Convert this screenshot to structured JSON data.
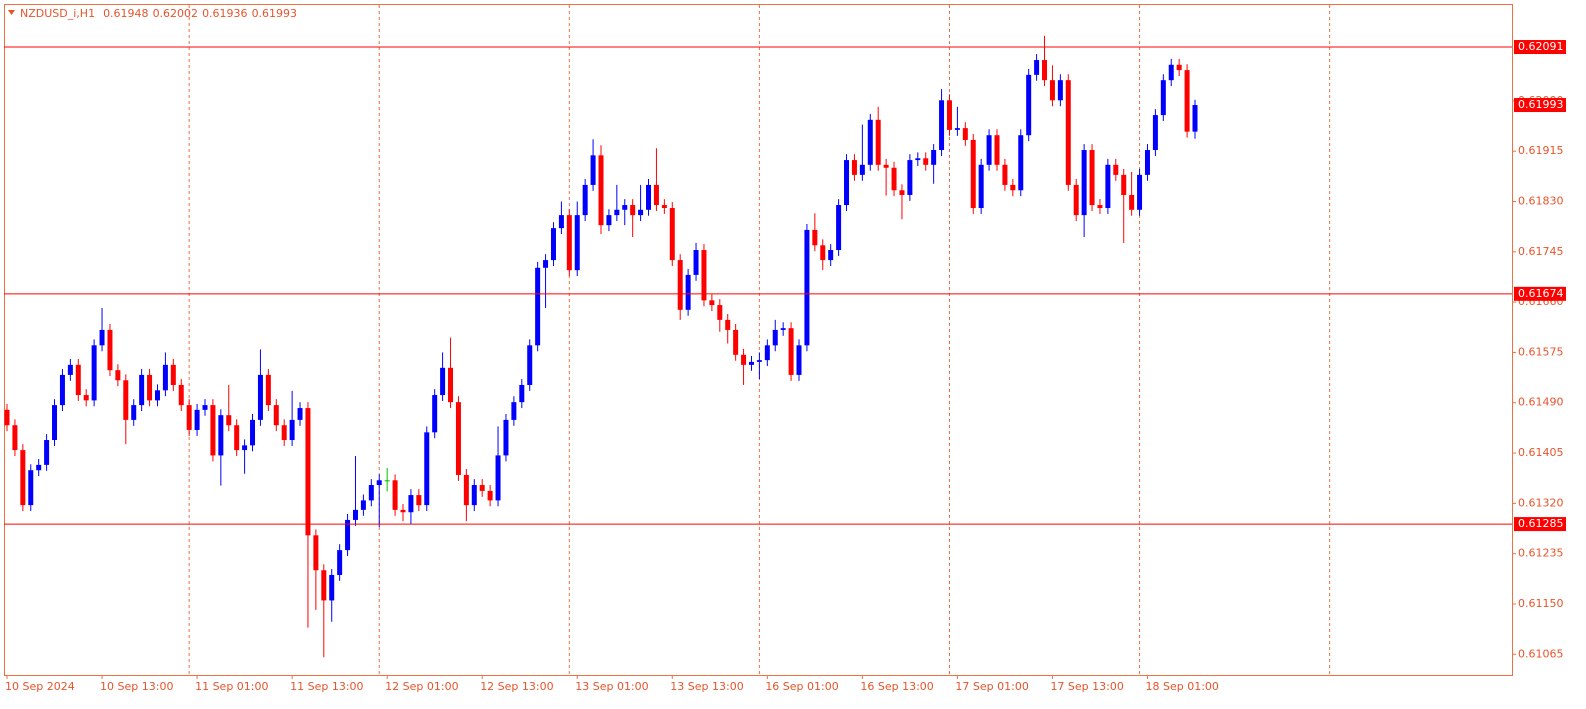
{
  "header": {
    "symbol": "NZDUSD_i,H1"
  },
  "chart_data": {
    "type": "candlestick",
    "categories": [
      "10 Sep 2024",
      null,
      null,
      null,
      null,
      null,
      null,
      null,
      null,
      null,
      null,
      null,
      "10 Sep 13:00",
      null,
      null,
      null,
      null,
      null,
      null,
      null,
      null,
      null,
      null,
      null,
      "11 Sep 01:00",
      null,
      null,
      null,
      null,
      null,
      null,
      null,
      null,
      null,
      null,
      null,
      "11 Sep 13:00",
      null,
      null,
      null,
      null,
      null,
      null,
      null,
      null,
      null,
      null,
      null,
      "12 Sep 01:00",
      null,
      null,
      null,
      null,
      null,
      null,
      null,
      null,
      null,
      null,
      null,
      "12 Sep 13:00",
      null,
      null,
      null,
      null,
      null,
      null,
      null,
      null,
      null,
      null,
      null,
      "13 Sep 01:00",
      null,
      null,
      null,
      null,
      null,
      null,
      null,
      null,
      null,
      null,
      null,
      "13 Sep 13:00",
      null,
      null,
      null,
      null,
      null,
      null,
      null,
      null,
      null,
      null,
      null,
      "16 Sep 01:00",
      null,
      null,
      null,
      null,
      null,
      null,
      null,
      null,
      null,
      null,
      null,
      "16 Sep 13:00",
      null,
      null,
      null,
      null,
      null,
      null,
      null,
      null,
      null,
      null,
      null,
      "17 Sep 01:00",
      null,
      null,
      null,
      null,
      null,
      null,
      null,
      null,
      null,
      null,
      null,
      "17 Sep 13:00",
      null,
      null,
      null,
      null,
      null,
      null,
      null,
      null,
      null,
      null,
      null,
      "18 Sep 01:00",
      null,
      null,
      null,
      null,
      null,
      null
    ],
    "open": [
      0.61478,
      0.61452,
      0.6141,
      0.61317,
      0.61376,
      0.61385,
      0.61427,
      0.61486,
      0.61537,
      0.61554,
      0.61503,
      0.61494,
      0.61587,
      0.61613,
      0.61545,
      0.61528,
      0.61461,
      0.61486,
      0.61537,
      0.61494,
      0.61511,
      0.61554,
      0.6152,
      0.61486,
      0.61444,
      0.61478,
      0.61486,
      0.61401,
      0.61469,
      0.61452,
      0.6141,
      0.61418,
      0.61461,
      0.61537,
      0.61486,
      0.61452,
      0.61427,
      0.61461,
      0.61481,
      0.61266,
      0.61207,
      0.61156,
      0.61199,
      0.61241,
      0.61292,
      0.61309,
      0.61325,
      0.61351,
      0.61359,
      0.61359,
      0.61309,
      0.61305,
      0.61334,
      0.61317,
      0.6144,
      0.61503,
      0.61549,
      0.61491,
      0.61368,
      0.61317,
      0.61351,
      0.61341,
      0.61325,
      0.61401,
      0.61461,
      0.61491,
      0.6152,
      0.61587,
      0.61718,
      0.61731,
      0.61785,
      0.61807,
      0.61714,
      0.61807,
      0.61858,
      0.61908,
      0.6179,
      0.61807,
      0.61816,
      0.61824,
      0.61807,
      0.61816,
      0.61858,
      0.61824,
      0.61819,
      0.61731,
      0.61647,
      0.61706,
      0.61748,
      0.61663,
      0.61655,
      0.6163,
      0.61613,
      0.61571,
      0.61554,
      0.61559,
      0.61562,
      0.61587,
      0.61613,
      0.61616,
      0.61537,
      0.61587,
      0.61782,
      0.61756,
      0.61731,
      0.61748,
      0.61824,
      0.619,
      0.61875,
      0.61892,
      0.61968,
      0.61892,
      0.61887,
      0.61849,
      0.61841,
      0.619,
      0.61903,
      0.61892,
      0.61917,
      0.62001,
      0.61951,
      0.61954,
      0.61934,
      0.61819,
      0.61892,
      0.61942,
      0.61892,
      0.61858,
      0.61849,
      0.61942,
      0.62044,
      0.62069,
      0.62035,
      0.62001,
      0.62035,
      0.61858,
      0.61807,
      0.61917,
      0.61824,
      0.61819,
      0.61892,
      0.61875,
      0.61841,
      0.61816,
      0.61875,
      0.61917,
      0.61976,
      0.62035,
      0.62061,
      0.62052,
      0.61948
    ],
    "high": [
      0.61488,
      0.61462,
      0.6142,
      0.61386,
      0.61395,
      0.61437,
      0.61496,
      0.61547,
      0.61564,
      0.61564,
      0.61513,
      0.61597,
      0.6165,
      0.61623,
      0.61555,
      0.61538,
      0.61496,
      0.61547,
      0.61547,
      0.61521,
      0.61575,
      0.61564,
      0.6153,
      0.61496,
      0.61488,
      0.61496,
      0.61496,
      0.61479,
      0.6152,
      0.61462,
      0.61428,
      0.61471,
      0.6158,
      0.61547,
      0.61496,
      0.61462,
      0.6151,
      0.61491,
      0.61491,
      0.61276,
      0.61217,
      0.61209,
      0.61251,
      0.61302,
      0.614,
      0.61335,
      0.61361,
      0.61369,
      0.6138,
      0.61369,
      0.61319,
      0.61344,
      0.61344,
      0.6145,
      0.61513,
      0.61575,
      0.616,
      0.61501,
      0.61378,
      0.61361,
      0.61361,
      0.61351,
      0.6145,
      0.61471,
      0.61501,
      0.6153,
      0.61597,
      0.61728,
      0.61741,
      0.61795,
      0.6183,
      0.61817,
      0.6183,
      0.61868,
      0.61935,
      0.61925,
      0.61817,
      0.61858,
      0.61834,
      0.61834,
      0.61858,
      0.61868,
      0.6192,
      0.61834,
      0.61829,
      0.61741,
      0.61716,
      0.6176,
      0.61758,
      0.61673,
      0.61665,
      0.6164,
      0.61623,
      0.61581,
      0.61569,
      0.61575,
      0.61597,
      0.6163,
      0.61626,
      0.61626,
      0.61597,
      0.61792,
      0.6181,
      0.61766,
      0.61758,
      0.61834,
      0.6191,
      0.6191,
      0.6196,
      0.61978,
      0.6199,
      0.61902,
      0.61897,
      0.61859,
      0.6191,
      0.61913,
      0.61913,
      0.61927,
      0.6202,
      0.62011,
      0.6199,
      0.61964,
      0.61944,
      0.61902,
      0.61952,
      0.61952,
      0.61902,
      0.61868,
      0.61952,
      0.62054,
      0.62079,
      0.6211,
      0.6206,
      0.62045,
      0.62045,
      0.61868,
      0.61927,
      0.61927,
      0.61834,
      0.61902,
      0.61902,
      0.61885,
      0.6188,
      0.61885,
      0.61927,
      0.61986,
      0.62045,
      0.62071,
      0.62071,
      0.62062,
      0.62002
    ],
    "low": [
      0.61442,
      0.614,
      0.61307,
      0.61307,
      0.61366,
      0.61375,
      0.61417,
      0.61476,
      0.61527,
      0.61493,
      0.61484,
      0.61484,
      0.61577,
      0.61535,
      0.61518,
      0.6142,
      0.61451,
      0.61476,
      0.61484,
      0.61484,
      0.61501,
      0.6151,
      0.61476,
      0.61434,
      0.61434,
      0.61468,
      0.61391,
      0.6135,
      0.61442,
      0.614,
      0.6137,
      0.61408,
      0.61451,
      0.61476,
      0.61442,
      0.61417,
      0.61417,
      0.61451,
      0.6111,
      0.6114,
      0.6106,
      0.6112,
      0.61189,
      0.61231,
      0.61282,
      0.61299,
      0.61315,
      0.6128,
      0.6134,
      0.61299,
      0.6129,
      0.61285,
      0.61307,
      0.61307,
      0.6143,
      0.61493,
      0.61481,
      0.61358,
      0.6129,
      0.61307,
      0.61331,
      0.61315,
      0.61315,
      0.61391,
      0.61451,
      0.61481,
      0.6151,
      0.61577,
      0.6165,
      0.61721,
      0.61775,
      0.61704,
      0.61704,
      0.61797,
      0.61848,
      0.61775,
      0.6178,
      0.61797,
      0.6179,
      0.6177,
      0.61797,
      0.61806,
      0.61814,
      0.61809,
      0.61721,
      0.6163,
      0.61637,
      0.61696,
      0.61653,
      0.61645,
      0.6161,
      0.6159,
      0.61561,
      0.6152,
      0.61544,
      0.6153,
      0.61552,
      0.61577,
      0.61603,
      0.61527,
      0.61527,
      0.61577,
      0.61746,
      0.61714,
      0.61721,
      0.61738,
      0.61814,
      0.61865,
      0.61865,
      0.61882,
      0.61882,
      0.6184,
      0.61839,
      0.618,
      0.61831,
      0.6189,
      0.61882,
      0.6186,
      0.61907,
      0.61941,
      0.61941,
      0.61924,
      0.61809,
      0.61809,
      0.61882,
      0.61882,
      0.61848,
      0.61839,
      0.61839,
      0.61932,
      0.62034,
      0.62025,
      0.61991,
      0.61991,
      0.61848,
      0.61797,
      0.6177,
      0.61814,
      0.61809,
      0.61809,
      0.61865,
      0.6176,
      0.61806,
      0.61806,
      0.61865,
      0.61907,
      0.61966,
      0.62025,
      0.62042,
      0.61938,
      0.61936
    ],
    "close": [
      0.61452,
      0.6141,
      0.61317,
      0.61376,
      0.61385,
      0.61427,
      0.61486,
      0.61537,
      0.61554,
      0.61503,
      0.61494,
      0.61587,
      0.61613,
      0.61545,
      0.61528,
      0.61461,
      0.61486,
      0.61537,
      0.61494,
      0.61511,
      0.61554,
      0.6152,
      0.61486,
      0.61444,
      0.61478,
      0.61486,
      0.61401,
      0.61469,
      0.61452,
      0.6141,
      0.61418,
      0.61461,
      0.61537,
      0.61486,
      0.61452,
      0.61427,
      0.61461,
      0.61481,
      0.61266,
      0.61207,
      0.61156,
      0.61199,
      0.61241,
      0.61292,
      0.61309,
      0.61325,
      0.61351,
      0.61359,
      0.61359,
      0.61309,
      0.61305,
      0.61334,
      0.61317,
      0.6144,
      0.61503,
      0.61549,
      0.61491,
      0.61368,
      0.61317,
      0.61351,
      0.61341,
      0.61325,
      0.61401,
      0.61461,
      0.61491,
      0.6152,
      0.61587,
      0.61718,
      0.61731,
      0.61785,
      0.61807,
      0.61714,
      0.61807,
      0.61858,
      0.61908,
      0.6179,
      0.61807,
      0.61816,
      0.61824,
      0.61807,
      0.61816,
      0.61858,
      0.61824,
      0.61819,
      0.61731,
      0.61647,
      0.61706,
      0.61748,
      0.61663,
      0.61655,
      0.6163,
      0.61613,
      0.61571,
      0.61554,
      0.61559,
      0.61562,
      0.61587,
      0.61613,
      0.61616,
      0.61537,
      0.61587,
      0.61782,
      0.61756,
      0.61731,
      0.61748,
      0.61824,
      0.619,
      0.61875,
      0.61892,
      0.61968,
      0.61892,
      0.61887,
      0.61849,
      0.61841,
      0.619,
      0.61903,
      0.61892,
      0.61917,
      0.62001,
      0.61951,
      0.61954,
      0.61934,
      0.61819,
      0.61892,
      0.61942,
      0.61892,
      0.61858,
      0.61849,
      0.61942,
      0.62044,
      0.62069,
      0.62035,
      0.62001,
      0.62035,
      0.61858,
      0.61807,
      0.61917,
      0.61824,
      0.61819,
      0.61892,
      0.61875,
      0.61841,
      0.61816,
      0.61875,
      0.61917,
      0.61976,
      0.62035,
      0.62061,
      0.62052,
      0.61948,
      0.61993
    ],
    "up_color": "#0000ff",
    "down_color": "#ff0000",
    "doji_color": "#00c000",
    "levels": [
      0.62091,
      0.61674,
      0.61285
    ],
    "level_color": "#ff0000",
    "ylim": [
      0.6103,
      0.62162
    ],
    "yticks": [
      0.61065,
      {
        "value": 0.6115,
        "label": "0.61150"
      },
      0.61235,
      {
        "value": 0.6132,
        "label": "0.61320"
      },
      0.61405,
      {
        "value": 0.6149,
        "label": "0.61490"
      },
      0.61575,
      {
        "value": 0.6166,
        "label": "0.61660"
      },
      0.61745,
      {
        "value": 0.6183,
        "label": "0.61830"
      },
      0.61915,
      {
        "value": 0.62,
        "label": "0.62000"
      }
    ],
    "grid": true
  }
}
